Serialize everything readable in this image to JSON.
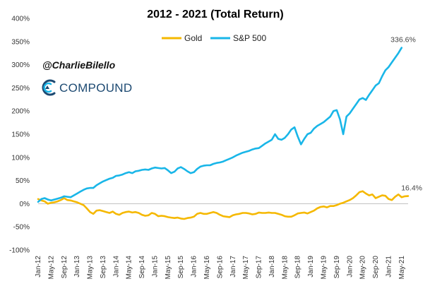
{
  "chart_data": {
    "type": "line",
    "title": "2012 - 2021 (Total Return)",
    "xlabel": "",
    "ylabel": "",
    "ylim": [
      -100,
      400
    ],
    "yticks": [
      "-100%",
      "-50%",
      "0%",
      "50%",
      "100%",
      "150%",
      "200%",
      "250%",
      "300%",
      "350%",
      "400%"
    ],
    "xticks": [
      "Jan-12",
      "May-12",
      "Sep-12",
      "Jan-13",
      "May-13",
      "Sep-13",
      "Jan-14",
      "May-14",
      "Sep-14",
      "Jan-15",
      "May-15",
      "Sep-15",
      "Jan-16",
      "May-16",
      "Sep-16",
      "Jan-17",
      "May-17",
      "Sep-17",
      "Jan-18",
      "May-18",
      "Sep-18",
      "Jan-19",
      "May-19",
      "Sep-19",
      "Jan-20",
      "May-20",
      "Sep-20",
      "Jan-21",
      "May-21"
    ],
    "legend_position": "top-center",
    "colors": {
      "gold": "#F5B800",
      "sp500": "#19B6E8"
    },
    "series": [
      {
        "name": "Gold",
        "end_label": "16.4%",
        "values": [
          10,
          7,
          5,
          0,
          2,
          3,
          5,
          8,
          12,
          8,
          7,
          5,
          3,
          0,
          -3,
          -10,
          -18,
          -22,
          -15,
          -14,
          -16,
          -18,
          -20,
          -17,
          -22,
          -24,
          -20,
          -18,
          -17,
          -19,
          -18,
          -20,
          -24,
          -26,
          -25,
          -20,
          -22,
          -27,
          -26,
          -27,
          -29,
          -30,
          -31,
          -30,
          -32,
          -33,
          -31,
          -30,
          -28,
          -22,
          -20,
          -22,
          -22,
          -20,
          -18,
          -20,
          -24,
          -27,
          -28,
          -29,
          -25,
          -23,
          -22,
          -20,
          -20,
          -21,
          -23,
          -22,
          -19,
          -20,
          -20,
          -19,
          -20,
          -20,
          -22,
          -24,
          -27,
          -28,
          -28,
          -25,
          -21,
          -20,
          -19,
          -21,
          -18,
          -15,
          -10,
          -7,
          -6,
          -8,
          -5,
          -5,
          -3,
          0,
          2,
          5,
          8,
          12,
          18,
          25,
          27,
          22,
          18,
          20,
          12,
          15,
          18,
          17,
          10,
          8,
          15,
          20,
          14,
          16,
          16.4
        ]
      },
      {
        "name": "S&P 500",
        "end_label": "336.6%",
        "values": [
          4,
          10,
          12,
          9,
          7,
          9,
          11,
          13,
          16,
          15,
          14,
          18,
          22,
          26,
          30,
          33,
          34,
          34,
          40,
          44,
          48,
          51,
          54,
          56,
          60,
          61,
          63,
          66,
          68,
          66,
          70,
          71,
          73,
          74,
          73,
          76,
          78,
          77,
          76,
          77,
          72,
          66,
          69,
          76,
          79,
          75,
          70,
          66,
          68,
          75,
          80,
          82,
          83,
          83,
          86,
          88,
          89,
          91,
          94,
          97,
          100,
          104,
          107,
          110,
          112,
          114,
          117,
          119,
          120,
          125,
          130,
          134,
          138,
          150,
          140,
          138,
          142,
          150,
          160,
          165,
          145,
          128,
          140,
          150,
          153,
          162,
          168,
          172,
          176,
          182,
          188,
          200,
          202,
          182,
          150,
          188,
          195,
          205,
          215,
          225,
          228,
          224,
          235,
          245,
          255,
          260,
          275,
          288,
          295,
          305,
          315,
          325,
          336.6
        ]
      }
    ]
  },
  "watermark": {
    "handle": "@CharlieBilello",
    "brand": "COMPOUND"
  }
}
